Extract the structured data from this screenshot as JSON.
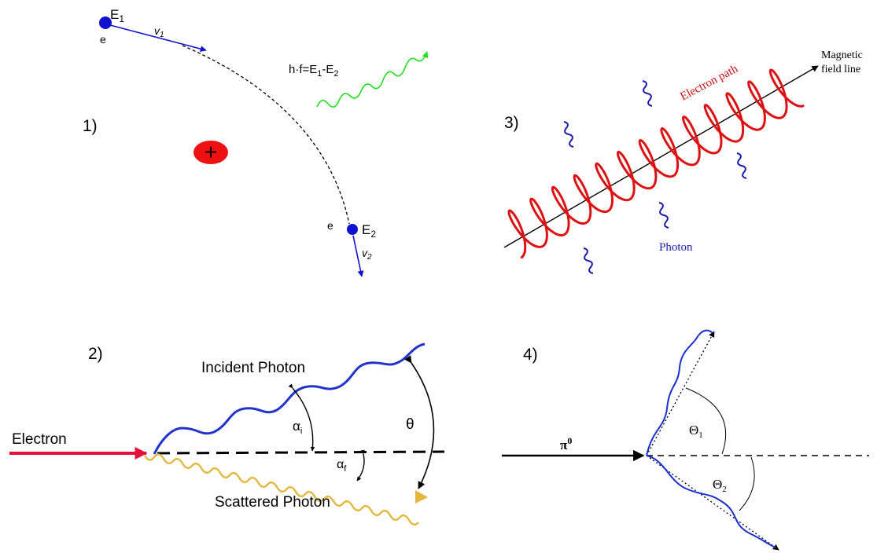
{
  "panels": [
    {
      "number": "1)",
      "electron_label_top": "e",
      "energy_top": "E",
      "energy_top_sub": "1",
      "velocity_top": "v",
      "velocity_top_sub": "1",
      "formula_main": "h·f=E",
      "formula_sub1": "1",
      "formula_mid": "-E",
      "formula_sub2": "2",
      "nucleus_sign": "+",
      "electron_label_bottom": "e",
      "energy_bottom": "E",
      "energy_bottom_sub": "2",
      "velocity_bottom": "v",
      "velocity_bottom_sub": "2"
    },
    {
      "number": "2)",
      "incident_label": "Incident Photon",
      "electron_label": "Electron",
      "scattered_label": "Scattered Photon",
      "alpha_i": "α",
      "alpha_i_sub": "i",
      "alpha_f": "α",
      "alpha_f_sub": "f",
      "theta": "θ"
    },
    {
      "number": "3)",
      "electron_path_label": "Electron path",
      "field_line_label_1": "Magnetic",
      "field_line_label_2": "field line",
      "photon_label": "Photon"
    },
    {
      "number": "4)",
      "pion": "π",
      "pion_sup": "0",
      "theta1": "Θ",
      "theta1_sub": "1",
      "theta2": "Θ",
      "theta2_sub": "2"
    }
  ],
  "colors": {
    "electron_blue": "#1010d0",
    "photon_green": "#22dd22",
    "nucleus_red": "#ee1111",
    "electron_arrow_red": "#e8103a",
    "scattered_gold": "#e2b73c",
    "helix_red": "#dd1111",
    "photon_navy": "#1a1aaa"
  }
}
